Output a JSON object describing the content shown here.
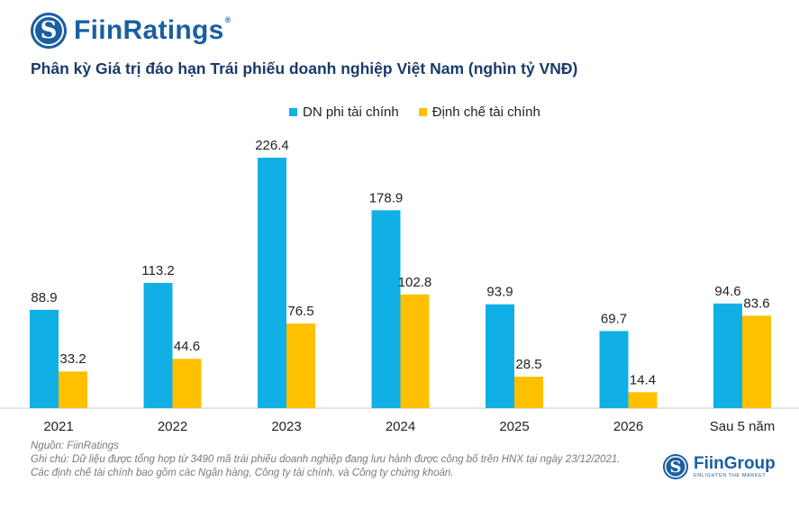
{
  "brand": {
    "logo_letter": "S",
    "name": "FiinRatings",
    "reg_mark": "®"
  },
  "footer_brand": {
    "logo_letter": "S",
    "name": "FiinGroup",
    "tagline": "ENLIGHTEN THE MARKET"
  },
  "notes": {
    "source": "Nguồn: FiinRatings",
    "note": "Ghi chú: Dữ liệu được tổng hợp từ 3490 mã trái phiếu doanh nghiệp đang lưu hành được công bố trên HNX tại ngày 23/12/2021. Các định chế tài chính bao gồm các Ngân hàng, Công ty tài chính, và Công ty chứng khoán."
  },
  "colors": {
    "series_1": "#10b0e6",
    "series_2": "#ffc000",
    "axis": "#c8c8c8",
    "text": "#222222"
  },
  "chart_data": {
    "type": "bar",
    "title": "Phân kỳ Giá trị đáo hạn Trái phiếu doanh nghiệp Việt Nam (nghìn tỷ VNĐ)",
    "categories": [
      "2021",
      "2022",
      "2023",
      "2024",
      "2025",
      "2026",
      "Sau 5 năm"
    ],
    "series": [
      {
        "name": "DN phi tài chính",
        "values": [
          88.9,
          113.2,
          226.4,
          178.9,
          93.9,
          69.7,
          94.6
        ],
        "labels": [
          "88.9",
          "113.2",
          "226.4",
          "178.9",
          "93.9",
          "69.7",
          "94.6"
        ]
      },
      {
        "name": "Định chế tài chính",
        "values": [
          33.2,
          44.6,
          76.5,
          102.8,
          28.5,
          14.4,
          83.6
        ],
        "labels": [
          "33.2",
          "44.6",
          "76.5",
          "102.8",
          "28.5",
          "14.4",
          "83.6"
        ]
      }
    ],
    "xlabel": "",
    "ylabel": "",
    "ylim": [
      0,
      226.4
    ],
    "grid": false,
    "legend": "top-center"
  }
}
